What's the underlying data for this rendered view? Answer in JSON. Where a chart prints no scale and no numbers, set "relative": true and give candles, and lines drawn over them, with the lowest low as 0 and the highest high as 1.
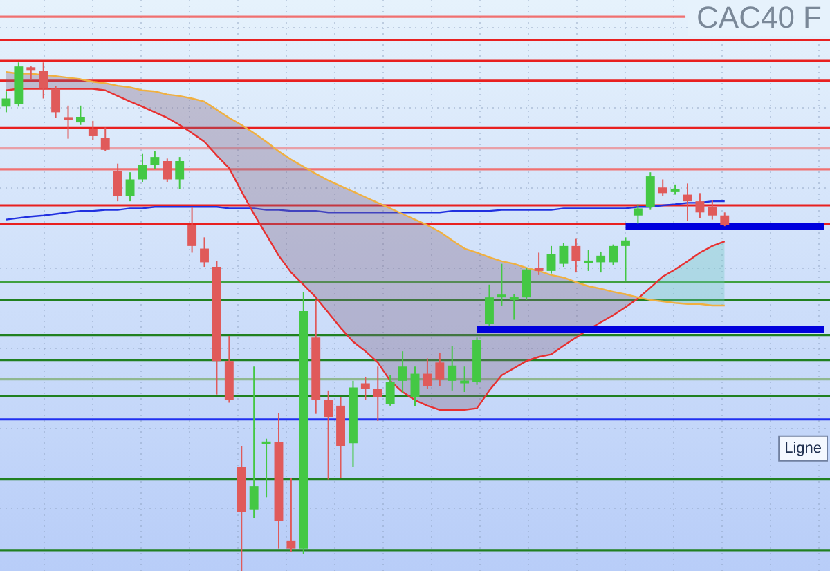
{
  "chart_data": {
    "type": "candlestick",
    "title": "CAC40 F",
    "relative": true,
    "grid": true,
    "legend": false,
    "categories": [
      null,
      null,
      null,
      null,
      null,
      null,
      null,
      null,
      null,
      null,
      null,
      null,
      null,
      null,
      null,
      null,
      null,
      null,
      null,
      null,
      null,
      null,
      null,
      null,
      null,
      null,
      null,
      null,
      null,
      null,
      null,
      null,
      null,
      null,
      null,
      null,
      null,
      null,
      null,
      null,
      null,
      null,
      null,
      null,
      null,
      null,
      null,
      null,
      null,
      null,
      null,
      null,
      null,
      null,
      null,
      null,
      null,
      null,
      null,
      null,
      null,
      null,
      null,
      null,
      null,
      null,
      null
    ],
    "ohlc": [
      [
        0.913,
        0.943,
        0.902,
        0.929
      ],
      [
        0.918,
        1,
        0.913,
        0.992
      ],
      [
        0.989,
        0.992,
        0.967,
        0.985
      ],
      [
        0.984,
        1,
        0.929,
        0.948
      ],
      [
        0.948,
        0.953,
        0.891,
        0.902
      ],
      [
        0.889,
        0.915,
        0.85,
        0.887
      ],
      [
        0.882,
        0.915,
        0.877,
        0.893
      ],
      [
        0.869,
        0.885,
        0.847,
        0.855
      ],
      [
        0.852,
        0.872,
        0.825,
        0.828
      ],
      [
        0.787,
        0.801,
        0.727,
        0.738
      ],
      [
        0.738,
        0.784,
        0.727,
        0.77
      ],
      [
        0.77,
        0.82,
        0.765,
        0.798
      ],
      [
        0.798,
        0.825,
        0.79,
        0.814
      ],
      [
        0.806,
        0.811,
        0.765,
        0.77
      ],
      [
        0.77,
        0.814,
        0.751,
        0.806
      ],
      [
        0.68,
        0.716,
        0.626,
        0.639
      ],
      [
        0.634,
        0.656,
        0.598,
        0.607
      ],
      [
        0.598,
        0.609,
        0.347,
        0.413
      ],
      [
        0.413,
        0.462,
        0.331,
        0.336
      ],
      [
        0.205,
        0.246,
        0,
        0.117
      ],
      [
        0.12,
        0.402,
        0.104,
        0.167
      ],
      [
        0.249,
        0.26,
        0.145,
        0.251
      ],
      [
        0.254,
        0.311,
        0.044,
        0.098
      ],
      [
        0.06,
        0.183,
        0.038,
        0.044
      ],
      [
        0.044,
        0.549,
        0.033,
        0.511
      ],
      [
        0.459,
        0.533,
        0.309,
        0.336
      ],
      [
        0.336,
        0.355,
        0.18,
        0.303
      ],
      [
        0.325,
        0.342,
        0.183,
        0.246
      ],
      [
        0.251,
        0.374,
        0.205,
        0.361
      ],
      [
        0.369,
        0.382,
        0.336,
        0.358
      ],
      [
        0.358,
        0.402,
        0.295,
        0.342
      ],
      [
        0.328,
        0.385,
        0.325,
        0.372
      ],
      [
        0.374,
        0.432,
        0.35,
        0.402
      ],
      [
        0.342,
        0.402,
        0.325,
        0.388
      ],
      [
        0.388,
        0.418,
        0.358,
        0.363
      ],
      [
        0.41,
        0.429,
        0.363,
        0.377
      ],
      [
        0.374,
        0.443,
        0.355,
        0.404
      ],
      [
        0.369,
        0.402,
        0.352,
        0.372
      ],
      [
        0.372,
        0.459,
        0.366,
        0.454
      ],
      [
        0.486,
        0.563,
        0.481,
        0.538
      ],
      [
        0.538,
        0.604,
        0.522,
        0.541
      ],
      [
        0.533,
        0.544,
        0.494,
        0.536
      ],
      [
        0.538,
        0.596,
        0.533,
        0.593
      ],
      [
        0.596,
        0.626,
        0.582,
        0.59
      ],
      [
        0.59,
        0.639,
        0.585,
        0.623
      ],
      [
        0.604,
        0.645,
        0.598,
        0.639
      ],
      [
        0.639,
        0.653,
        0.587,
        0.609
      ],
      [
        0.605,
        0.631,
        0.59,
        0.608
      ],
      [
        0.607,
        0.628,
        0.587,
        0.62
      ],
      [
        0.607,
        0.642,
        0.601,
        0.639
      ],
      [
        0.639,
        0.656,
        0.571,
        0.65
      ],
      [
        0.699,
        0.721,
        0.683,
        0.713
      ],
      [
        0.716,
        0.784,
        0.71,
        0.776
      ],
      [
        0.754,
        0.77,
        0.738,
        0.743
      ],
      [
        0.745,
        0.76,
        0.74,
        0.748
      ],
      [
        0.74,
        0.762,
        0.689,
        0.727
      ],
      [
        0.727,
        0.743,
        0.694,
        0.705
      ],
      [
        0.716,
        0.729,
        0.691,
        0.699
      ],
      [
        0.699,
        0.705,
        0.678,
        0.68
      ],
      null,
      null,
      null,
      null,
      null,
      null,
      null,
      null
    ],
    "series": [
      {
        "type": "line",
        "color": "#f0b040",
        "values": [
          0.981,
          0.978,
          0.978,
          0.975,
          0.973,
          0.97,
          0.967,
          0.962,
          0.959,
          0.954,
          0.951,
          0.945,
          0.943,
          0.937,
          0.934,
          0.929,
          0.923,
          0.907,
          0.891,
          0.877,
          0.861,
          0.844,
          0.825,
          0.809,
          0.795,
          0.781,
          0.768,
          0.757,
          0.746,
          0.735,
          0.724,
          0.713,
          0.702,
          0.691,
          0.68,
          0.667,
          0.65,
          0.634,
          0.626,
          0.617,
          0.609,
          0.604,
          0.596,
          0.59,
          0.582,
          0.577,
          0.568,
          0.56,
          0.555,
          0.549,
          0.544,
          0.538,
          0.533,
          0.53,
          0.527,
          0.525,
          0.525,
          0.522,
          0.522,
          null,
          null,
          null,
          null,
          null,
          null,
          null,
          null
        ]
      },
      {
        "type": "line",
        "color": "#e83030",
        "lower": [
          0.945,
          0.948,
          0.948,
          0.948,
          0.948,
          0.948,
          0.948,
          0.948,
          0.945,
          0.934,
          0.923,
          0.913,
          0.902,
          0.891,
          0.877,
          0.861,
          0.844,
          0.817,
          0.792,
          0.746,
          0.702,
          0.661,
          0.62,
          0.587,
          0.563,
          0.538,
          0.508,
          0.478,
          0.451,
          0.432,
          0.41,
          0.374,
          0.352,
          0.336,
          0.325,
          0.317,
          0.317,
          0.317,
          0.32,
          0.355,
          0.385,
          0.399,
          0.413,
          0.421,
          0.426,
          0.443,
          0.459,
          0.475,
          0.489,
          0.503,
          0.519,
          0.536,
          0.533,
          0.53,
          0.527,
          0.525,
          0.525,
          0.522,
          0.522,
          null,
          null,
          null,
          null,
          null,
          null,
          null,
          null
        ],
        "upper": [
          0.981,
          0.978,
          0.978,
          0.975,
          0.973,
          0.97,
          0.967,
          0.962,
          0.959,
          0.954,
          0.951,
          0.945,
          0.943,
          0.937,
          0.934,
          0.929,
          0.923,
          0.907,
          0.891,
          0.877,
          0.861,
          0.844,
          0.825,
          0.809,
          0.795,
          0.781,
          0.768,
          0.757,
          0.746,
          0.735,
          0.724,
          0.713,
          0.702,
          0.691,
          0.68,
          0.667,
          0.65,
          0.634,
          0.626,
          0.617,
          0.609,
          0.604,
          0.596,
          0.59,
          0.582,
          0.577,
          0.568,
          0.56,
          0.555,
          0.549,
          0.544,
          0.538,
          0.557,
          0.579,
          0.593,
          0.609,
          0.626,
          0.639,
          0.648,
          null,
          null,
          null,
          null,
          null,
          null,
          null,
          null
        ],
        "values": [
          0.945,
          0.948,
          0.948,
          0.948,
          0.948,
          0.948,
          0.948,
          0.948,
          0.945,
          0.934,
          0.923,
          0.913,
          0.902,
          0.891,
          0.877,
          0.861,
          0.844,
          0.817,
          0.792,
          0.746,
          0.702,
          0.661,
          0.62,
          0.587,
          0.563,
          0.538,
          0.508,
          0.478,
          0.451,
          0.432,
          0.41,
          0.374,
          0.352,
          0.336,
          0.325,
          0.317,
          0.317,
          0.317,
          0.32,
          0.355,
          0.385,
          0.399,
          0.413,
          0.421,
          0.426,
          0.443,
          0.459,
          0.475,
          0.489,
          0.503,
          0.519,
          0.536,
          0.557,
          0.579,
          0.593,
          0.609,
          0.626,
          0.639,
          0.648,
          null,
          null,
          null,
          null,
          null,
          null,
          null,
          null
        ]
      },
      {
        "type": "line",
        "color": "#2030e0",
        "values": [
          0.691,
          0.694,
          0.697,
          0.699,
          0.702,
          0.705,
          0.708,
          0.708,
          0.71,
          0.71,
          0.713,
          0.713,
          0.716,
          0.716,
          0.716,
          0.716,
          0.716,
          0.716,
          0.713,
          0.713,
          0.713,
          0.71,
          0.71,
          0.708,
          0.708,
          0.708,
          0.705,
          0.705,
          0.705,
          0.705,
          0.705,
          0.705,
          0.705,
          0.705,
          0.705,
          0.705,
          0.708,
          0.708,
          0.708,
          0.708,
          0.71,
          0.71,
          0.71,
          0.71,
          0.71,
          0.713,
          0.713,
          0.713,
          0.713,
          0.713,
          0.713,
          0.716,
          0.716,
          0.719,
          0.721,
          0.724,
          0.724,
          0.727,
          0.727,
          null,
          null,
          null,
          null,
          null,
          null,
          null,
          null
        ]
      },
      {
        "type": "line",
        "color": "#0000dd",
        "values": [
          null,
          null,
          null,
          null,
          null,
          null,
          null,
          null,
          null,
          null,
          null,
          null,
          null,
          null,
          null,
          null,
          null,
          null,
          null,
          null,
          null,
          null,
          null,
          null,
          null,
          null,
          null,
          null,
          null,
          null,
          null,
          null,
          null,
          null,
          null,
          null,
          null,
          null,
          null,
          null,
          null,
          null,
          null,
          null,
          null,
          null,
          null,
          null,
          null,
          null,
          0.678,
          0.678,
          0.678,
          0.678,
          0.678,
          0.678,
          0.678,
          0.678,
          0.678,
          0.678,
          0.678,
          0.678,
          0.678,
          0.678,
          0.678,
          0.678,
          0.678
        ]
      },
      {
        "type": "line",
        "color": "#0000dd",
        "values": [
          null,
          null,
          null,
          null,
          null,
          null,
          null,
          null,
          null,
          null,
          null,
          null,
          null,
          null,
          null,
          null,
          null,
          null,
          null,
          null,
          null,
          null,
          null,
          null,
          null,
          null,
          null,
          null,
          null,
          null,
          null,
          null,
          null,
          null,
          null,
          null,
          null,
          null,
          0.475,
          0.475,
          0.475,
          0.475,
          0.475,
          0.475,
          0.475,
          0.475,
          0.475,
          0.475,
          0.475,
          0.475,
          0.475,
          0.475,
          0.475,
          0.475,
          0.475,
          0.475,
          0.475,
          0.475,
          0.475,
          0.475,
          0.475,
          0.475,
          0.475,
          0.475,
          0.475,
          0.475,
          0.475
        ]
      }
    ],
    "ref_lines": [
      {
        "axis": "y",
        "value": 1.09,
        "color": "#f07070"
      },
      {
        "axis": "y",
        "value": 1.044,
        "color": "#e82020"
      },
      {
        "axis": "y",
        "value": 1.003,
        "color": "#e82020"
      },
      {
        "axis": "y",
        "value": 0.964,
        "color": "#e82020"
      },
      {
        "axis": "y",
        "value": 0.872,
        "color": "#e82020"
      },
      {
        "axis": "y",
        "value": 0.831,
        "color": "#e8a0a8"
      },
      {
        "axis": "y",
        "value": 0.79,
        "color": "#f07070"
      },
      {
        "axis": "y",
        "value": 0.719,
        "color": "#e82020"
      },
      {
        "axis": "y",
        "value": 0.683,
        "color": "#e82020"
      },
      {
        "axis": "y",
        "value": 0.568,
        "color": "#40a040"
      },
      {
        "axis": "y",
        "value": 0.533,
        "color": "#208020"
      },
      {
        "axis": "y",
        "value": 0.464,
        "color": "#208020"
      },
      {
        "axis": "y",
        "value": 0.415,
        "color": "#208020"
      },
      {
        "axis": "y",
        "value": 0.377,
        "color": "#90b890"
      },
      {
        "axis": "y",
        "value": 0.344,
        "color": "#208020"
      },
      {
        "axis": "y",
        "value": 0.298,
        "color": "#2030f0",
        "label": "Ligne"
      },
      {
        "axis": "y",
        "value": 0.18,
        "color": "#208020"
      },
      {
        "axis": "y",
        "value": 0.041,
        "color": "#208020"
      }
    ]
  }
}
